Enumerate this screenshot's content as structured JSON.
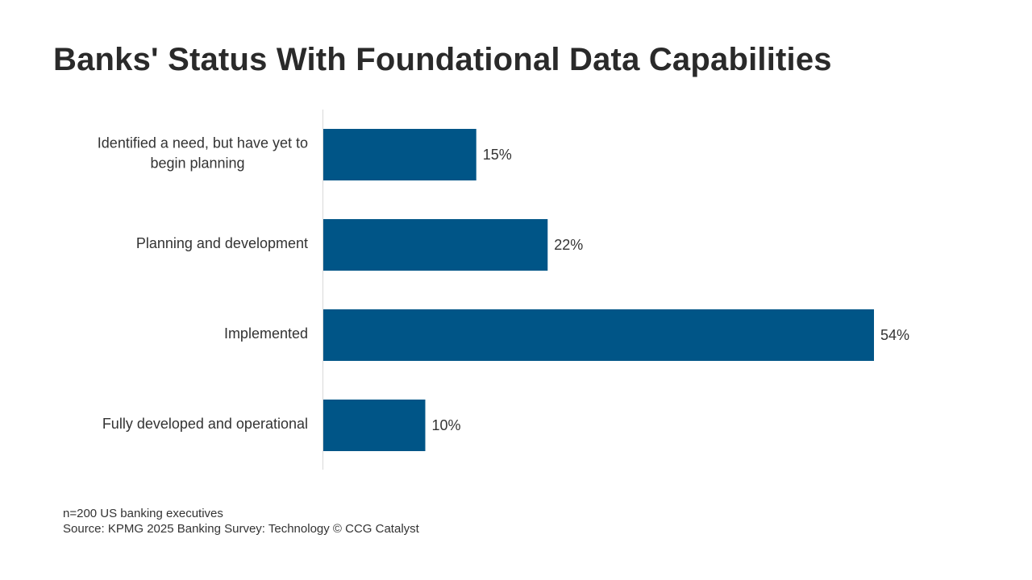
{
  "title": "Banks' Status With Foundational Data Capabilities",
  "footnote": {
    "sample": "n=200 US banking executives",
    "source": "Source: KPMG 2025 Banking Survey: Technology © CCG Catalyst"
  },
  "colors": {
    "bar": "#005587",
    "axis": "#d9d9d9",
    "text": "#333333"
  },
  "chart_data": {
    "type": "bar",
    "orientation": "horizontal",
    "title": "Banks' Status With Foundational Data Capabilities",
    "categories": [
      [
        "Identified a need, but have yet to",
        "begin planning"
      ],
      [
        "Planning and development"
      ],
      [
        "Implemented"
      ],
      [
        "Fully developed and operational"
      ]
    ],
    "values": [
      15,
      22,
      54,
      10
    ],
    "value_labels": [
      "15%",
      "22%",
      "54%",
      "10%"
    ],
    "unit": "%",
    "xlim": [
      0,
      60
    ],
    "grid": false,
    "legend": "none"
  }
}
